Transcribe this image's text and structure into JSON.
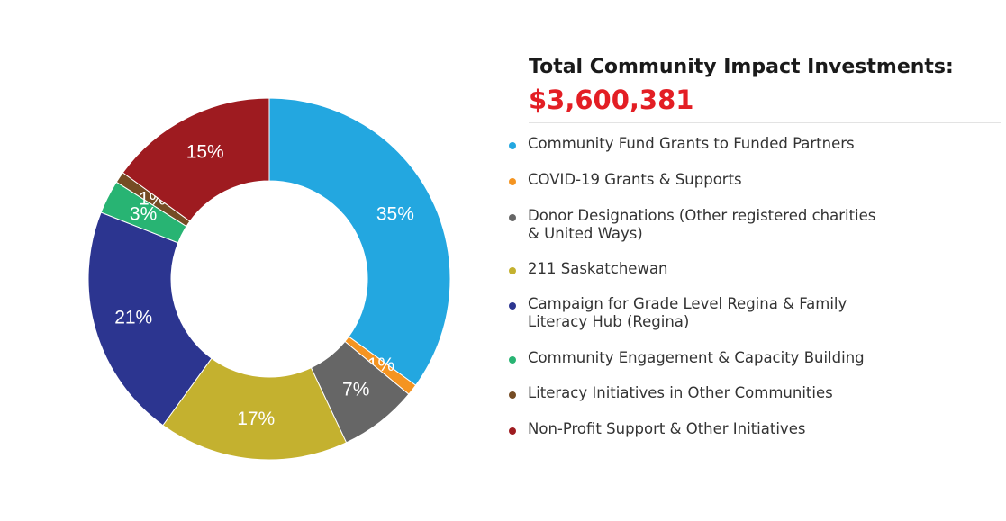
{
  "title": "Total Community Impact Investments:",
  "total": "$3,600,381",
  "chart_data": {
    "type": "pie",
    "donut": true,
    "slices": [
      {
        "label": "Community Fund Grants to Funded Partners",
        "value": 35,
        "display": "35%",
        "color": "#23a7e0"
      },
      {
        "label": "COVID-19 Grants & Supports",
        "value": 1,
        "display": "1%",
        "color": "#f49421"
      },
      {
        "label": "Donor Designations (Other registered charities\n& United Ways)",
        "value": 7,
        "display": "7%",
        "color": "#666666"
      },
      {
        "label": "211 Saskatchewan",
        "value": 17,
        "display": "17%",
        "color": "#c4b12f"
      },
      {
        "label": "Campaign for Grade Level Regina & Family\nLiteracy Hub (Regina)",
        "value": 21,
        "display": "21%",
        "color": "#2c3590"
      },
      {
        "label": "Community Engagement & Capacity Building",
        "value": 3,
        "display": "3%",
        "color": "#28b473"
      },
      {
        "label": "Literacy Initiatives in Other Communities",
        "value": 1,
        "display": "1%",
        "color": "#754c24"
      },
      {
        "label": "Non-Profit Support & Other Initiatives",
        "value": 15,
        "display": "15%",
        "color": "#9e1b20"
      }
    ],
    "legend_position": "right"
  }
}
